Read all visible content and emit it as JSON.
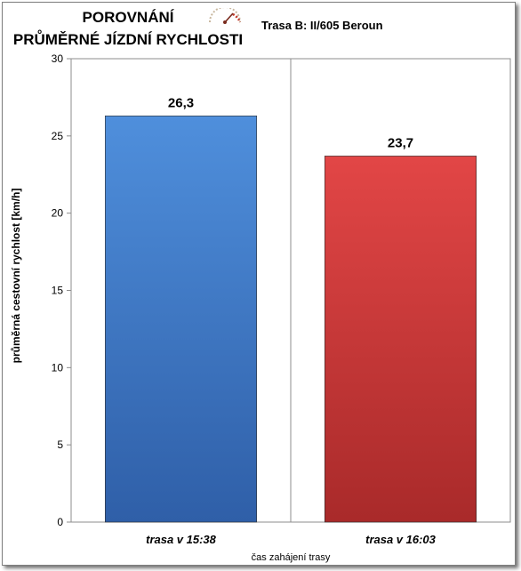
{
  "chart_data": {
    "type": "bar",
    "title": "POROVNÁNÍ",
    "subtitle_line2": "PRŮMĚRNÉ JÍZDNÍ RYCHLOSTI",
    "route_label": "Trasa B: II/605  Beroun",
    "categories": [
      "trasa v 15:38",
      "trasa v 16:03"
    ],
    "values": [
      26.3,
      23.7
    ],
    "value_labels": [
      "26,3",
      "23,7"
    ],
    "bar_colors": [
      "#3c78c8",
      "#d83a3a"
    ],
    "ylabel": "průměrná cestovní rychlost [km/h]",
    "xlabel": "čas zahájení trasy",
    "ylim": [
      0,
      30
    ],
    "yticks": [
      0,
      5,
      10,
      15,
      20,
      25,
      30
    ],
    "grid": false,
    "legend": "none"
  }
}
